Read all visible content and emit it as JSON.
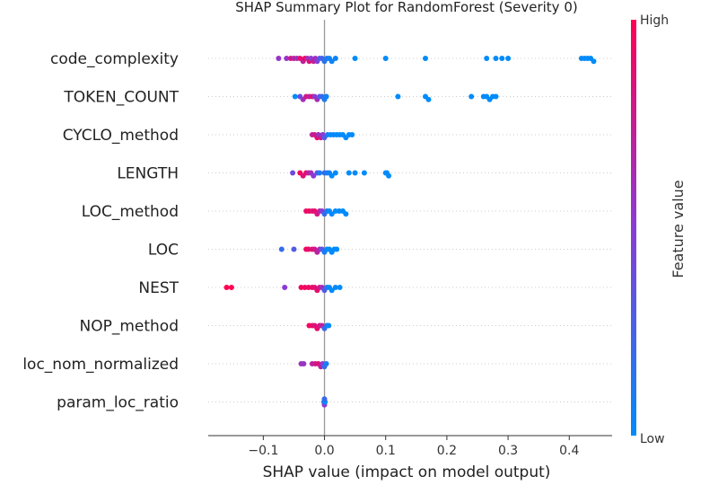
{
  "chart_data": {
    "type": "scatter",
    "title": "SHAP Summary Plot for RandomForest (Severity 0)",
    "xlabel": "SHAP value (impact on model output)",
    "ylabel": "",
    "xlim": [
      -0.19,
      0.47
    ],
    "xticks": [
      -0.1,
      0.0,
      0.1,
      0.2,
      0.3,
      0.4
    ],
    "xtick_labels": [
      "−0.1",
      "0.0",
      "0.1",
      "0.2",
      "0.3",
      "0.4"
    ],
    "grid": false,
    "colorbar": {
      "label": "Feature value",
      "high_label": "High",
      "low_label": "Low",
      "low_color": "#008bfb",
      "mid_color": "#8a3bd5",
      "high_color": "#ff0051"
    },
    "features": [
      {
        "name": "code_complexity",
        "points": [
          {
            "x": -0.075,
            "v": 0.55
          },
          {
            "x": -0.062,
            "v": 0.55
          },
          {
            "x": -0.055,
            "v": 0.8
          },
          {
            "x": -0.05,
            "v": 0.7
          },
          {
            "x": -0.045,
            "v": 0.6
          },
          {
            "x": -0.04,
            "v": 0.9
          },
          {
            "x": -0.035,
            "v": 0.7
          },
          {
            "x": -0.032,
            "v": 0.95
          },
          {
            "x": -0.028,
            "v": 0.6
          },
          {
            "x": -0.025,
            "v": 0.85
          },
          {
            "x": -0.022,
            "v": 0.5
          },
          {
            "x": -0.018,
            "v": 0.75
          },
          {
            "x": -0.015,
            "v": 0.6
          },
          {
            "x": -0.012,
            "v": 0.45
          },
          {
            "x": -0.008,
            "v": 0.3
          },
          {
            "x": -0.004,
            "v": 0.25
          },
          {
            "x": 0.0,
            "v": 0.15
          },
          {
            "x": 0.004,
            "v": 0.1
          },
          {
            "x": 0.008,
            "v": 0.05
          },
          {
            "x": 0.012,
            "v": 0.05
          },
          {
            "x": 0.018,
            "v": 0.05
          },
          {
            "x": 0.05,
            "v": 0.0
          },
          {
            "x": 0.1,
            "v": 0.0
          },
          {
            "x": 0.165,
            "v": 0.0
          },
          {
            "x": 0.265,
            "v": 0.0
          },
          {
            "x": 0.28,
            "v": 0.0
          },
          {
            "x": 0.29,
            "v": 0.0
          },
          {
            "x": 0.3,
            "v": 0.0
          },
          {
            "x": 0.42,
            "v": 0.0
          },
          {
            "x": 0.425,
            "v": 0.0
          },
          {
            "x": 0.43,
            "v": 0.0
          },
          {
            "x": 0.435,
            "v": 0.0
          },
          {
            "x": 0.44,
            "v": 0.0
          }
        ]
      },
      {
        "name": "TOKEN_COUNT",
        "points": [
          {
            "x": -0.048,
            "v": 0.0
          },
          {
            "x": -0.04,
            "v": 0.4
          },
          {
            "x": -0.035,
            "v": 0.6
          },
          {
            "x": -0.03,
            "v": 0.8
          },
          {
            "x": -0.025,
            "v": 0.7
          },
          {
            "x": -0.02,
            "v": 0.9
          },
          {
            "x": -0.016,
            "v": 0.5
          },
          {
            "x": -0.012,
            "v": 0.6
          },
          {
            "x": -0.008,
            "v": 0.3
          },
          {
            "x": -0.004,
            "v": 0.2
          },
          {
            "x": 0.0,
            "v": 0.1
          },
          {
            "x": 0.003,
            "v": 0.05
          },
          {
            "x": 0.12,
            "v": 0.0
          },
          {
            "x": 0.165,
            "v": 0.0
          },
          {
            "x": 0.17,
            "v": 0.0
          },
          {
            "x": 0.24,
            "v": 0.0
          },
          {
            "x": 0.26,
            "v": 0.0
          },
          {
            "x": 0.265,
            "v": 0.0
          },
          {
            "x": 0.27,
            "v": 0.0
          },
          {
            "x": 0.275,
            "v": 0.0
          },
          {
            "x": 0.28,
            "v": 0.0
          }
        ]
      },
      {
        "name": "CYCLO_method",
        "points": [
          {
            "x": -0.02,
            "v": 0.7
          },
          {
            "x": -0.016,
            "v": 0.8
          },
          {
            "x": -0.012,
            "v": 0.9
          },
          {
            "x": -0.01,
            "v": 0.6
          },
          {
            "x": -0.006,
            "v": 0.75
          },
          {
            "x": -0.003,
            "v": 0.5
          },
          {
            "x": 0.0,
            "v": 0.3
          },
          {
            "x": 0.005,
            "v": 0.1
          },
          {
            "x": 0.01,
            "v": 0.0
          },
          {
            "x": 0.015,
            "v": 0.0
          },
          {
            "x": 0.02,
            "v": 0.0
          },
          {
            "x": 0.025,
            "v": 0.0
          },
          {
            "x": 0.03,
            "v": 0.0
          },
          {
            "x": 0.035,
            "v": 0.0
          },
          {
            "x": 0.04,
            "v": 0.0
          },
          {
            "x": 0.045,
            "v": 0.0
          }
        ]
      },
      {
        "name": "LENGTH",
        "points": [
          {
            "x": -0.052,
            "v": 0.4
          },
          {
            "x": -0.04,
            "v": 0.95
          },
          {
            "x": -0.035,
            "v": 0.85
          },
          {
            "x": -0.03,
            "v": 0.9
          },
          {
            "x": -0.026,
            "v": 0.7
          },
          {
            "x": -0.022,
            "v": 0.6
          },
          {
            "x": -0.018,
            "v": 0.5
          },
          {
            "x": -0.012,
            "v": 0.3
          },
          {
            "x": -0.008,
            "v": 0.1
          },
          {
            "x": 0.0,
            "v": 0.2
          },
          {
            "x": 0.004,
            "v": 0.1
          },
          {
            "x": 0.008,
            "v": 0.05
          },
          {
            "x": 0.012,
            "v": 0.0
          },
          {
            "x": 0.018,
            "v": 0.0
          },
          {
            "x": 0.04,
            "v": 0.0
          },
          {
            "x": 0.05,
            "v": 0.0
          },
          {
            "x": 0.065,
            "v": 0.0
          },
          {
            "x": 0.1,
            "v": 0.0
          },
          {
            "x": 0.102,
            "v": 0.0
          },
          {
            "x": 0.105,
            "v": 0.0
          }
        ]
      },
      {
        "name": "LOC_method",
        "points": [
          {
            "x": -0.03,
            "v": 0.9
          },
          {
            "x": -0.025,
            "v": 0.95
          },
          {
            "x": -0.02,
            "v": 0.85
          },
          {
            "x": -0.016,
            "v": 0.9
          },
          {
            "x": -0.012,
            "v": 0.8
          },
          {
            "x": -0.008,
            "v": 0.7
          },
          {
            "x": -0.004,
            "v": 0.5
          },
          {
            "x": 0.0,
            "v": 0.2
          },
          {
            "x": 0.004,
            "v": 0.1
          },
          {
            "x": 0.008,
            "v": 0.0
          },
          {
            "x": 0.012,
            "v": 0.0
          },
          {
            "x": 0.018,
            "v": 0.0
          },
          {
            "x": 0.024,
            "v": 0.0
          },
          {
            "x": 0.03,
            "v": 0.0
          },
          {
            "x": 0.035,
            "v": 0.0
          }
        ]
      },
      {
        "name": "LOC",
        "points": [
          {
            "x": -0.07,
            "v": 0.2
          },
          {
            "x": -0.05,
            "v": 0.3
          },
          {
            "x": -0.03,
            "v": 0.95
          },
          {
            "x": -0.026,
            "v": 0.9
          },
          {
            "x": -0.02,
            "v": 0.85
          },
          {
            "x": -0.016,
            "v": 0.8
          },
          {
            "x": -0.012,
            "v": 0.7
          },
          {
            "x": -0.008,
            "v": 0.6
          },
          {
            "x": -0.004,
            "v": 0.3
          },
          {
            "x": 0.0,
            "v": 0.1
          },
          {
            "x": 0.004,
            "v": 0.0
          },
          {
            "x": 0.008,
            "v": 0.0
          },
          {
            "x": 0.012,
            "v": 0.0
          },
          {
            "x": 0.016,
            "v": 0.0
          },
          {
            "x": 0.02,
            "v": 0.0
          }
        ]
      },
      {
        "name": "NEST",
        "points": [
          {
            "x": -0.16,
            "v": 1.0
          },
          {
            "x": -0.152,
            "v": 1.0
          },
          {
            "x": -0.065,
            "v": 0.5
          },
          {
            "x": -0.038,
            "v": 0.95
          },
          {
            "x": -0.032,
            "v": 0.95
          },
          {
            "x": -0.026,
            "v": 0.9
          },
          {
            "x": -0.02,
            "v": 0.95
          },
          {
            "x": -0.016,
            "v": 0.85
          },
          {
            "x": -0.012,
            "v": 0.9
          },
          {
            "x": -0.008,
            "v": 0.8
          },
          {
            "x": -0.004,
            "v": 0.6
          },
          {
            "x": 0.0,
            "v": 0.3
          },
          {
            "x": 0.004,
            "v": 0.1
          },
          {
            "x": 0.008,
            "v": 0.0
          },
          {
            "x": 0.012,
            "v": 0.0
          },
          {
            "x": 0.018,
            "v": 0.0
          },
          {
            "x": 0.025,
            "v": 0.0
          }
        ]
      },
      {
        "name": "NOP_method",
        "points": [
          {
            "x": -0.025,
            "v": 0.95
          },
          {
            "x": -0.02,
            "v": 0.9
          },
          {
            "x": -0.016,
            "v": 0.85
          },
          {
            "x": -0.012,
            "v": 0.9
          },
          {
            "x": -0.008,
            "v": 0.8
          },
          {
            "x": -0.004,
            "v": 0.7
          },
          {
            "x": 0.0,
            "v": 0.2
          },
          {
            "x": 0.004,
            "v": 0.1
          },
          {
            "x": 0.007,
            "v": 0.0
          }
        ]
      },
      {
        "name": "loc_nom_normalized",
        "points": [
          {
            "x": -0.038,
            "v": 0.6
          },
          {
            "x": -0.034,
            "v": 0.55
          },
          {
            "x": -0.02,
            "v": 0.7
          },
          {
            "x": -0.015,
            "v": 0.8
          },
          {
            "x": -0.01,
            "v": 0.85
          },
          {
            "x": -0.006,
            "v": 0.7
          },
          {
            "x": -0.003,
            "v": 0.5
          },
          {
            "x": 0.0,
            "v": 0.2
          },
          {
            "x": 0.003,
            "v": 0.1
          }
        ]
      },
      {
        "name": "param_loc_ratio",
        "points": [
          {
            "x": -0.001,
            "v": 0.1
          },
          {
            "x": 0.0,
            "v": 0.5
          },
          {
            "x": 0.001,
            "v": 0.0
          },
          {
            "x": 0.0,
            "v": 0.2
          }
        ]
      }
    ]
  }
}
